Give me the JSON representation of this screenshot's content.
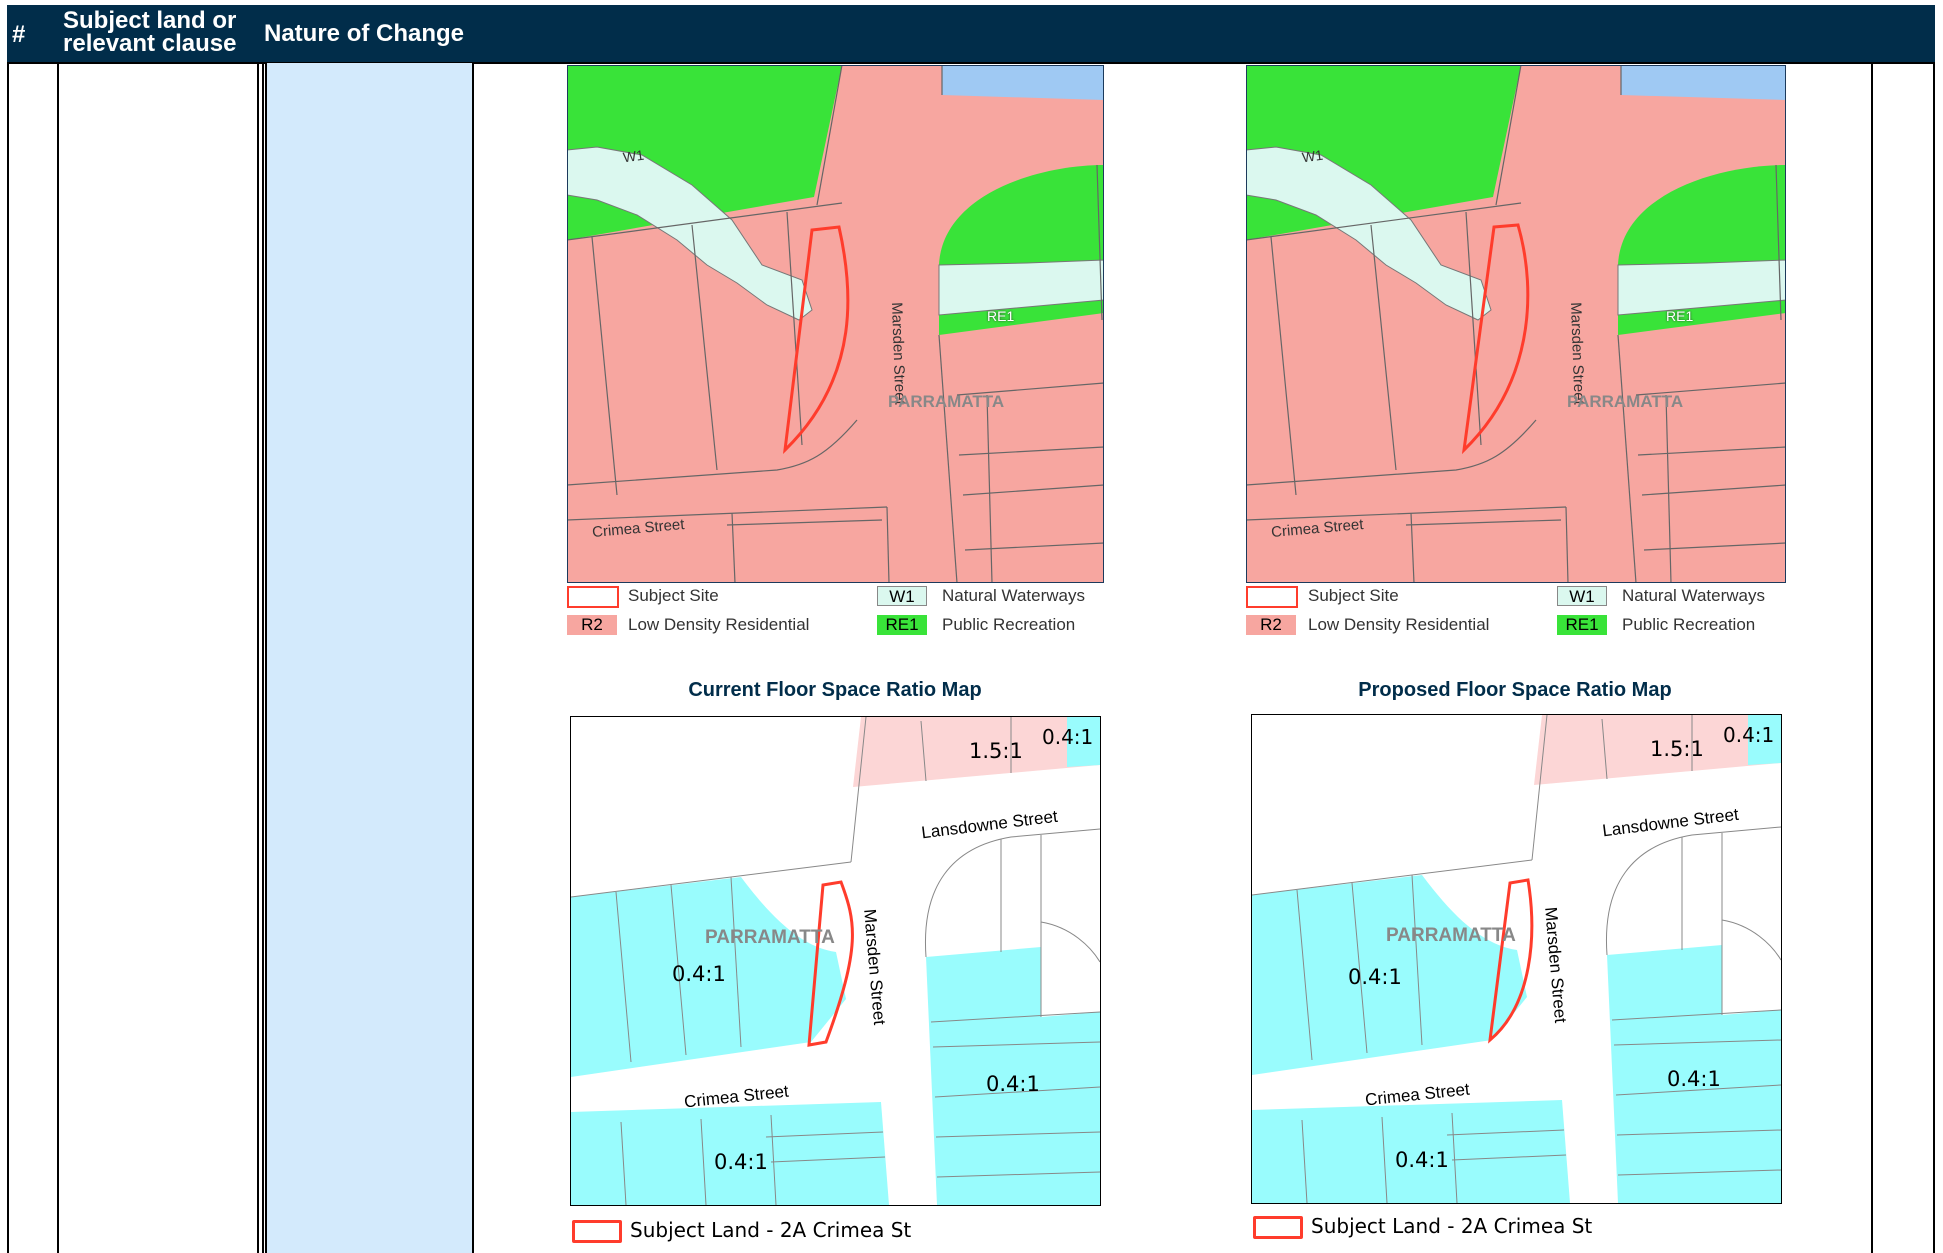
{
  "header": {
    "col_num": "#",
    "col_subject_line1": "Subject land or",
    "col_subject_line2": "relevant clause",
    "col_nature": "Nature of Change"
  },
  "zoning_map": {
    "labels": {
      "w1": "W1",
      "re1": "RE1",
      "street_marsden": "Marsden Street",
      "street_crimea": "Crimea Street",
      "suburb": "PARRAMATTA"
    },
    "legend": {
      "subject_site": "Subject Site",
      "r2_code": "R2",
      "r2_label": "Low Density Residential",
      "w1_code": "W1",
      "w1_label": "Natural Waterways",
      "re1_code": "RE1",
      "re1_label": "Public Recreation"
    }
  },
  "fsr_maps": {
    "current_title": "Current Floor Space Ratio Map",
    "proposed_title": "Proposed Floor Space Ratio Map",
    "labels": {
      "fsr_04": "0.4:1",
      "fsr_15": "1.5:1",
      "street_lansdowne": "Lansdowne Street",
      "street_marsden": "Marsden Street",
      "street_crimea": "Crimea Street",
      "suburb": "PARRAMATTA"
    },
    "legend_subject": "Subject Land - 2A Crimea St"
  },
  "colors": {
    "header_bg": "#012d4a",
    "cell_blue": "#d3eafc",
    "zone_r2": "#f7a6a0",
    "zone_w1": "#dbf8ef",
    "zone_re1": "#39e339",
    "fsr_04": "#99fcfd",
    "fsr_15": "#fcd6d6",
    "subject_outline": "#ff3c2c"
  }
}
